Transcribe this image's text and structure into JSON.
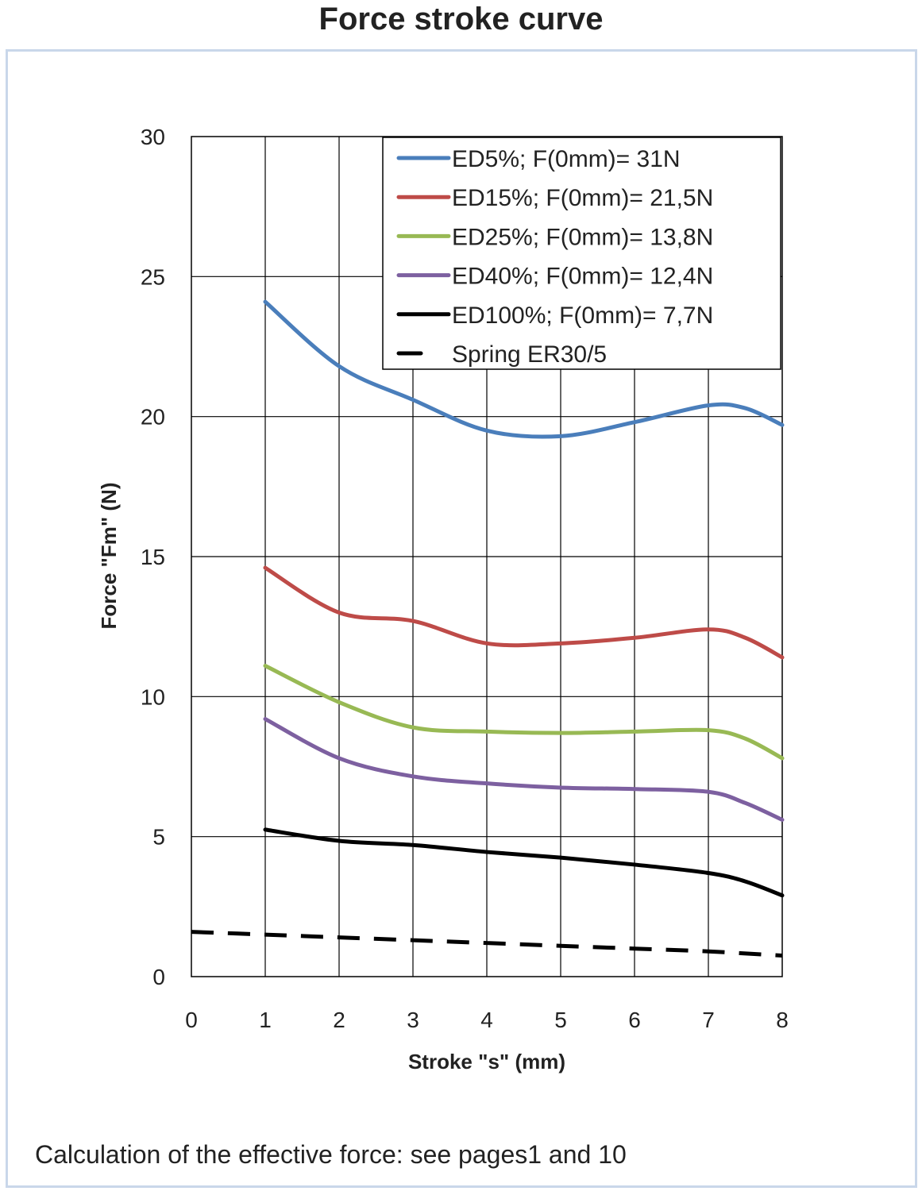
{
  "title": "Force stroke curve",
  "footnote": "Calculation of the effective force: see pages1 and 10",
  "chart_data": {
    "type": "line",
    "title": "Force stroke curve",
    "xlabel": "Stroke \"s\" (mm)",
    "ylabel": "Force \"Fm\" (N)",
    "xlim": [
      0,
      8
    ],
    "ylim": [
      0,
      30
    ],
    "xticks": [
      "0",
      "1",
      "2",
      "3",
      "4",
      "5",
      "6",
      "7",
      "8"
    ],
    "yticks": [
      "0",
      "5",
      "10",
      "15",
      "20",
      "25",
      "30"
    ],
    "grid": true,
    "legend_position": "top-right",
    "series": [
      {
        "name": "ED5%; F(0mm)= 31N",
        "color": "#4a7ebb",
        "style": "solid",
        "x": [
          1,
          2,
          3,
          4,
          5,
          6,
          7,
          7.5,
          8
        ],
        "y": [
          24.1,
          21.8,
          20.6,
          19.5,
          19.3,
          19.8,
          20.4,
          20.3,
          19.7
        ]
      },
      {
        "name": "ED15%; F(0mm)= 21,5N",
        "color": "#be4b48",
        "style": "solid",
        "x": [
          1,
          2,
          3,
          4,
          5,
          6,
          7,
          7.5,
          8
        ],
        "y": [
          14.6,
          13.0,
          12.7,
          11.9,
          11.9,
          12.1,
          12.4,
          12.1,
          11.4
        ]
      },
      {
        "name": "ED25%; F(0mm)= 13,8N",
        "color": "#98b954",
        "style": "solid",
        "x": [
          1,
          2,
          3,
          4,
          5,
          6,
          7,
          7.5,
          8
        ],
        "y": [
          11.1,
          9.8,
          8.9,
          8.75,
          8.7,
          8.75,
          8.8,
          8.5,
          7.8
        ]
      },
      {
        "name": "ED40%; F(0mm)= 12,4N",
        "color": "#7d60a0",
        "style": "solid",
        "x": [
          1,
          2,
          3,
          4,
          5,
          6,
          7,
          7.5,
          8
        ],
        "y": [
          9.2,
          7.8,
          7.15,
          6.9,
          6.75,
          6.7,
          6.6,
          6.2,
          5.6
        ]
      },
      {
        "name": "ED100%; F(0mm)= 7,7N",
        "color": "#000000",
        "style": "solid",
        "x": [
          1,
          2,
          3,
          4,
          5,
          6,
          7,
          7.5,
          8
        ],
        "y": [
          5.25,
          4.85,
          4.7,
          4.45,
          4.25,
          4.0,
          3.7,
          3.4,
          2.9
        ]
      },
      {
        "name": "Spring ER30/5",
        "color": "#000000",
        "style": "dashed",
        "x": [
          0,
          1,
          2,
          3,
          4,
          5,
          6,
          7,
          8
        ],
        "y": [
          1.6,
          1.5,
          1.4,
          1.3,
          1.2,
          1.1,
          1.0,
          0.9,
          0.75
        ]
      }
    ]
  }
}
